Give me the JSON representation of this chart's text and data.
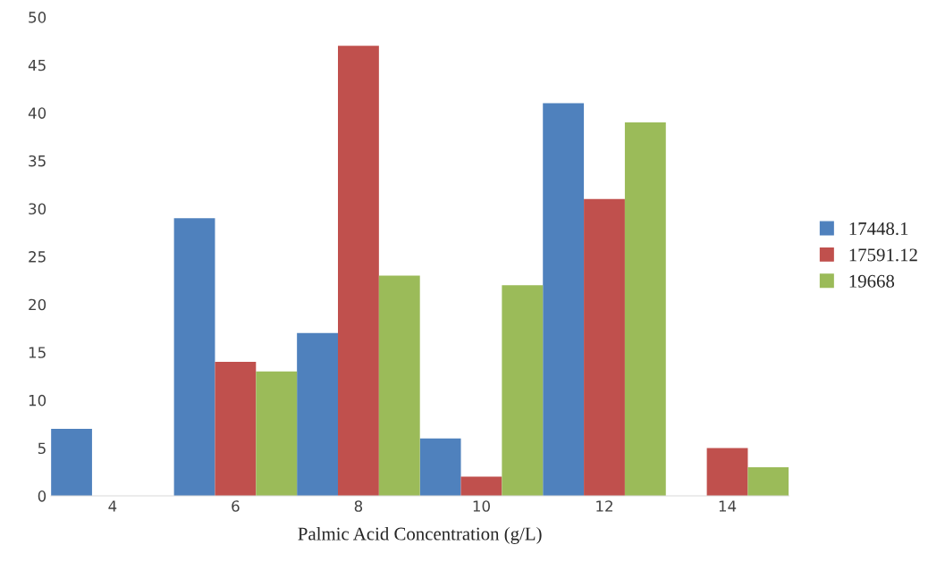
{
  "chart_data": {
    "type": "bar",
    "xlabel": "Palmic Acid Concentration (g/L)",
    "categories": [
      "4",
      "6",
      "8",
      "10",
      "12",
      "14"
    ],
    "series": [
      {
        "name": "17448.1",
        "color": "#4f81bd",
        "values": [
          7,
          29,
          17,
          6,
          41,
          0
        ]
      },
      {
        "name": "17591.12",
        "color": "#c0504d",
        "values": [
          0,
          14,
          47,
          2,
          31,
          5
        ]
      },
      {
        "name": "19668",
        "color": "#9bbb59",
        "values": [
          0,
          13,
          23,
          22,
          39,
          3
        ]
      }
    ],
    "ylim": [
      0,
      50
    ],
    "yticks": [
      0,
      5,
      10,
      15,
      20,
      25,
      30,
      35,
      40,
      45,
      50
    ],
    "grid": false,
    "legend": "right"
  }
}
